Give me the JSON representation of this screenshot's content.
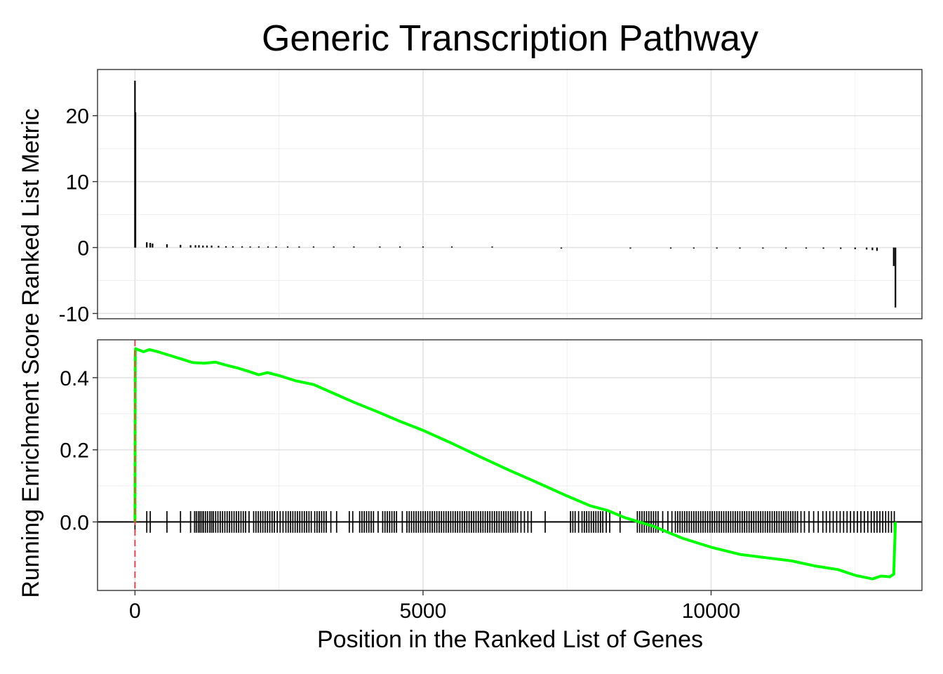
{
  "chart_data": {
    "type": "line",
    "title": "Generic Transcription Pathway",
    "xlabel": "Position in the Ranked List of Genes",
    "ylabel": "Running Enrichment Score Ranked List Metric",
    "xlim": [
      -650,
      13660
    ],
    "x_ticks": [
      0,
      5000,
      10000
    ],
    "x_tick_labels": [
      "0",
      "5000",
      "10000"
    ],
    "grid": true,
    "colors": {
      "running_es": "#00FF00",
      "peak_line": "#E8424F",
      "hits": "#000000",
      "metric": "#000000"
    },
    "panels": [
      {
        "name": "ranked_list_metric",
        "ylim": [
          -10.8,
          27.0
        ],
        "y_ticks": [
          -10,
          0,
          10,
          20
        ],
        "y_tick_labels": [
          "-10",
          "0",
          "10",
          "20"
        ],
        "bars": [
          [
            0,
            25.3
          ],
          [
            8,
            20.5
          ],
          [
            205,
            0.8
          ],
          [
            265,
            0.7
          ],
          [
            305,
            0.6
          ],
          [
            555,
            0.5
          ],
          [
            790,
            0.4
          ],
          [
            965,
            0.35
          ],
          [
            1050,
            0.35
          ],
          [
            1110,
            0.35
          ],
          [
            1180,
            0.3
          ],
          [
            1250,
            0.3
          ],
          [
            1330,
            0.3
          ],
          [
            1450,
            0.25
          ],
          [
            1580,
            0.2
          ],
          [
            1700,
            0.2
          ],
          [
            1860,
            0.18
          ],
          [
            2000,
            0.15
          ],
          [
            2150,
            0.15
          ],
          [
            2310,
            0.12
          ],
          [
            2450,
            0.1
          ],
          [
            2650,
            0.1
          ],
          [
            2850,
            0.08
          ],
          [
            3100,
            0.07
          ],
          [
            3450,
            0.05
          ],
          [
            3800,
            0.05
          ],
          [
            4250,
            0.04
          ],
          [
            4600,
            0.03
          ],
          [
            5000,
            0.02
          ],
          [
            5500,
            0.02
          ],
          [
            6200,
            0.01
          ],
          [
            7400,
            -0.01
          ],
          [
            8600,
            -0.02
          ],
          [
            9300,
            -0.05
          ],
          [
            9700,
            -0.05
          ],
          [
            10100,
            -0.07
          ],
          [
            10500,
            -0.09
          ],
          [
            10900,
            -0.1
          ],
          [
            11300,
            -0.12
          ],
          [
            11650,
            -0.15
          ],
          [
            11950,
            -0.18
          ],
          [
            12250,
            -0.2
          ],
          [
            12500,
            -0.25
          ],
          [
            12700,
            -0.3
          ],
          [
            12800,
            -0.4
          ],
          [
            12880,
            -0.5
          ],
          [
            13170,
            -2.8
          ],
          [
            13200,
            -9.1
          ]
        ]
      },
      {
        "name": "running_enrichment_score",
        "ylim": [
          -0.19,
          0.505
        ],
        "y_ticks": [
          0.0,
          0.2,
          0.4
        ],
        "y_tick_labels": [
          "0.0",
          "0.2",
          "0.4"
        ],
        "peak_position": 0,
        "es_curve": [
          [
            0,
            0.0
          ],
          [
            5,
            0.47
          ],
          [
            10,
            0.48
          ],
          [
            150,
            0.472
          ],
          [
            250,
            0.478
          ],
          [
            400,
            0.472
          ],
          [
            600,
            0.462
          ],
          [
            800,
            0.452
          ],
          [
            1000,
            0.442
          ],
          [
            1200,
            0.44
          ],
          [
            1400,
            0.443
          ],
          [
            1600,
            0.434
          ],
          [
            1800,
            0.426
          ],
          [
            2000,
            0.416
          ],
          [
            2150,
            0.408
          ],
          [
            2300,
            0.414
          ],
          [
            2500,
            0.406
          ],
          [
            2800,
            0.391
          ],
          [
            3100,
            0.381
          ],
          [
            3400,
            0.36
          ],
          [
            3800,
            0.332
          ],
          [
            4200,
            0.306
          ],
          [
            4600,
            0.279
          ],
          [
            5000,
            0.254
          ],
          [
            5500,
            0.218
          ],
          [
            6000,
            0.18
          ],
          [
            6500,
            0.143
          ],
          [
            7000,
            0.108
          ],
          [
            7500,
            0.072
          ],
          [
            7900,
            0.045
          ],
          [
            8200,
            0.032
          ],
          [
            8500,
            0.012
          ],
          [
            9000,
            -0.012
          ],
          [
            9500,
            -0.045
          ],
          [
            10000,
            -0.07
          ],
          [
            10500,
            -0.09
          ],
          [
            11000,
            -0.1
          ],
          [
            11400,
            -0.108
          ],
          [
            11800,
            -0.122
          ],
          [
            12200,
            -0.132
          ],
          [
            12500,
            -0.148
          ],
          [
            12800,
            -0.158
          ],
          [
            12950,
            -0.15
          ],
          [
            13100,
            -0.152
          ],
          [
            13170,
            -0.145
          ],
          [
            13200,
            0.0
          ]
        ],
        "hit_positions": [
          0,
          205,
          265,
          555,
          790,
          965,
          1035,
          1065,
          1100,
          1130,
          1160,
          1190,
          1225,
          1260,
          1300,
          1330,
          1360,
          1400,
          1440,
          1480,
          1520,
          1560,
          1600,
          1640,
          1680,
          1720,
          1760,
          1800,
          1840,
          1880,
          1920,
          1980,
          2060,
          2100,
          2140,
          2180,
          2220,
          2260,
          2300,
          2340,
          2380,
          2420,
          2470,
          2520,
          2570,
          2620,
          2660,
          2700,
          2740,
          2780,
          2820,
          2860,
          2900,
          2940,
          2980,
          3020,
          3060,
          3120,
          3160,
          3200,
          3240,
          3280,
          3320,
          3400,
          3500,
          3720,
          3780,
          3900,
          3940,
          3980,
          4020,
          4060,
          4100,
          4140,
          4220,
          4300,
          4340,
          4380,
          4420,
          4460,
          4500,
          4540,
          4640,
          4720,
          4760,
          4800,
          4840,
          4880,
          4920,
          4960,
          5000,
          5040,
          5080,
          5120,
          5160,
          5200,
          5240,
          5280,
          5320,
          5360,
          5400,
          5440,
          5480,
          5520,
          5560,
          5600,
          5640,
          5680,
          5720,
          5760,
          5800,
          5840,
          5880,
          5920,
          5960,
          6000,
          6040,
          6080,
          6120,
          6160,
          6200,
          6240,
          6280,
          6320,
          6360,
          6400,
          6440,
          6480,
          6520,
          6560,
          6600,
          6640,
          6700,
          6760,
          6820,
          6880,
          7120,
          7560,
          7600,
          7640,
          7700,
          7760,
          7800,
          7840,
          7880,
          7920,
          7960,
          8000,
          8040,
          8080,
          8120,
          8180,
          8240,
          8420,
          8720,
          8760,
          8800,
          8840,
          8880,
          8920,
          8960,
          9000,
          9040,
          9080,
          9160,
          9250,
          9320,
          9380,
          9420,
          9460,
          9500,
          9540,
          9580,
          9620,
          9660,
          9700,
          9740,
          9780,
          9820,
          9860,
          9900,
          9940,
          9980,
          10020,
          10060,
          10100,
          10140,
          10180,
          10220,
          10260,
          10300,
          10340,
          10380,
          10420,
          10460,
          10500,
          10540,
          10580,
          10620,
          10660,
          10700,
          10740,
          10780,
          10820,
          10860,
          10900,
          10940,
          10980,
          11020,
          11060,
          11100,
          11140,
          11180,
          11220,
          11260,
          11300,
          11340,
          11380,
          11420,
          11460,
          11500,
          11560,
          11620,
          11700,
          11780,
          11860,
          11940,
          12000,
          12060,
          12120,
          12180,
          12240,
          12300,
          12360,
          12420,
          12480,
          12540,
          12600,
          12660,
          12720,
          12780,
          12830,
          12880,
          12930,
          12980,
          13030,
          13080,
          13130,
          13180
        ]
      }
    ]
  }
}
